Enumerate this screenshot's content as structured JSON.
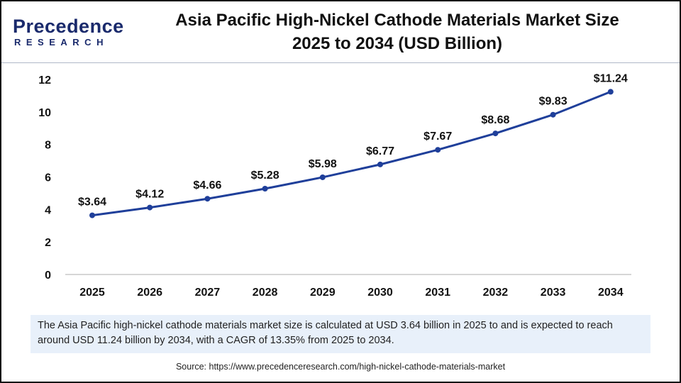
{
  "logo_text": "Precedence Research",
  "logo": {
    "line1": "Precedence",
    "line2": "RESEARCH"
  },
  "title_line1": "Asia Pacific High-Nickel Cathode Materials Market Size",
  "title_line2": "2025 to 2034 (USD Billion)",
  "note": "The Asia Pacific high-nickel cathode materials market size is calculated at USD 3.64 billion in 2025 to and is expected to reach around USD 11.24 billion by 2034, with a CAGR of 13.35% from 2025 to 2034.",
  "source": "Source: https://www.precedenceresearch.com/high-nickel-cathode-materials-market",
  "colors": {
    "line": "#1f3f9a",
    "axis": "#c8c8c8",
    "note_bg": "#e8f0fa"
  },
  "chart_data": {
    "type": "line",
    "categories": [
      "2025",
      "2026",
      "2027",
      "2028",
      "2029",
      "2030",
      "2031",
      "2032",
      "2033",
      "2034"
    ],
    "values": [
      3.64,
      4.12,
      4.66,
      5.28,
      5.98,
      6.77,
      7.67,
      8.68,
      9.83,
      11.24
    ],
    "data_labels": [
      "$3.64",
      "$4.12",
      "$4.66",
      "$5.28",
      "$5.98",
      "$6.77",
      "$7.67",
      "$8.68",
      "$9.83",
      "$11.24"
    ],
    "ylim": [
      0,
      12
    ],
    "yticks": [
      0,
      2,
      4,
      6,
      8,
      10,
      12
    ],
    "grid": false,
    "xlabel": "",
    "ylabel": ""
  }
}
